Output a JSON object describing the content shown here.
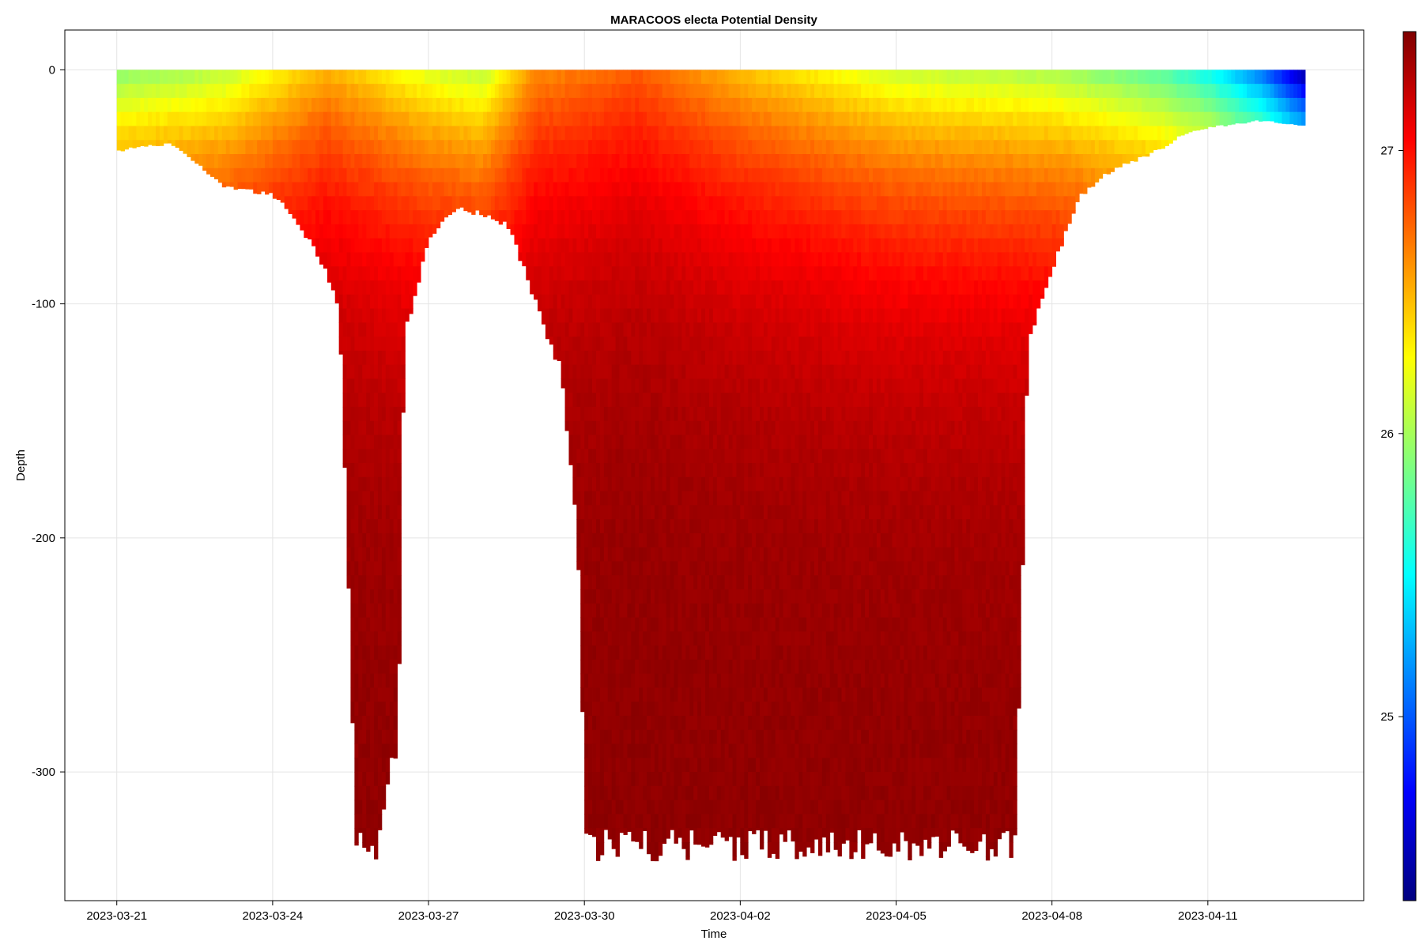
{
  "chart_data": {
    "type": "scatter",
    "title": "MARACOOS electa Potential Density",
    "xlabel": "Time",
    "ylabel": "Depth",
    "x_axis": {
      "type": "date",
      "range": [
        "2023-03-20",
        "2023-04-14"
      ],
      "ticks": [
        "2023-03-21",
        "2023-03-24",
        "2023-03-27",
        "2023-03-30",
        "2023-04-02",
        "2023-04-05",
        "2023-04-08",
        "2023-04-11"
      ]
    },
    "y_axis": {
      "range": [
        -355,
        17
      ],
      "ticks": [
        0,
        -100,
        -200,
        -300
      ],
      "tick_labels": [
        "0",
        "-100",
        "-200",
        "-300"
      ]
    },
    "colorbar": {
      "colormap": "jet",
      "range": [
        24.35,
        27.42
      ],
      "ticks": [
        25,
        26,
        27
      ],
      "tick_labels": [
        "25",
        "26",
        "27"
      ],
      "stops": [
        "#00007f",
        "#0000ff",
        "#007fff",
        "#00ffff",
        "#7fff7f",
        "#ffff00",
        "#ff7f00",
        "#ff0000",
        "#7f0000"
      ]
    },
    "grid": true,
    "data_start": "2023-03-21",
    "data_end": "2023-04-12T20:00",
    "profile_depth_envelope": [
      {
        "date": "2023-03-21",
        "max_depth": 35
      },
      {
        "date": "2023-03-22",
        "max_depth": 32
      },
      {
        "date": "2023-03-23",
        "max_depth": 50
      },
      {
        "date": "2023-03-24",
        "max_depth": 55
      },
      {
        "date": "2023-03-24T12:00",
        "max_depth": 68
      },
      {
        "date": "2023-03-25",
        "max_depth": 88
      },
      {
        "date": "2023-03-25T06:00",
        "max_depth": 105
      },
      {
        "date": "2023-03-25T14:00",
        "max_depth": 338
      },
      {
        "date": "2023-03-26",
        "max_depth": 338
      },
      {
        "date": "2023-03-26T09:00",
        "max_depth": 290
      },
      {
        "date": "2023-03-26T12:00",
        "max_depth": 115
      },
      {
        "date": "2023-03-27",
        "max_depth": 72
      },
      {
        "date": "2023-03-27T12:00",
        "max_depth": 60
      },
      {
        "date": "2023-03-28",
        "max_depth": 63
      },
      {
        "date": "2023-03-28T12:00",
        "max_depth": 68
      },
      {
        "date": "2023-03-29",
        "max_depth": 100
      },
      {
        "date": "2023-03-29T12:00",
        "max_depth": 130
      },
      {
        "date": "2023-03-29T20:00",
        "max_depth": 200
      },
      {
        "date": "2023-03-30",
        "max_depth": 338
      },
      {
        "date": "2023-03-31",
        "max_depth": 338
      },
      {
        "date": "2023-04-01",
        "max_depth": 338
      },
      {
        "date": "2023-04-02",
        "max_depth": 338
      },
      {
        "date": "2023-04-03",
        "max_depth": 338
      },
      {
        "date": "2023-04-04",
        "max_depth": 338
      },
      {
        "date": "2023-04-05",
        "max_depth": 338
      },
      {
        "date": "2023-04-06",
        "max_depth": 338
      },
      {
        "date": "2023-04-07",
        "max_depth": 338
      },
      {
        "date": "2023-04-07T06:00",
        "max_depth": 338
      },
      {
        "date": "2023-04-07T09:00",
        "max_depth": 240
      },
      {
        "date": "2023-04-07T12:00",
        "max_depth": 120
      },
      {
        "date": "2023-04-08",
        "max_depth": 85
      },
      {
        "date": "2023-04-08T12:00",
        "max_depth": 55
      },
      {
        "date": "2023-04-09",
        "max_depth": 45
      },
      {
        "date": "2023-04-10",
        "max_depth": 35
      },
      {
        "date": "2023-04-10T12:00",
        "max_depth": 28
      },
      {
        "date": "2023-04-11",
        "max_depth": 25
      },
      {
        "date": "2023-04-12",
        "max_depth": 22
      },
      {
        "date": "2023-04-12T20:00",
        "max_depth": 24
      }
    ],
    "surface_density_by_date": [
      {
        "date": "2023-03-21",
        "density": 25.9
      },
      {
        "date": "2023-03-23",
        "density": 26.05
      },
      {
        "date": "2023-03-25",
        "density": 26.5
      },
      {
        "date": "2023-03-27",
        "density": 26.15
      },
      {
        "date": "2023-03-28",
        "density": 26.05
      },
      {
        "date": "2023-03-29",
        "density": 26.6
      },
      {
        "date": "2023-03-31",
        "density": 26.75
      },
      {
        "date": "2023-04-02",
        "density": 26.45
      },
      {
        "date": "2023-04-05",
        "density": 26.1
      },
      {
        "date": "2023-04-08",
        "density": 26.0
      },
      {
        "date": "2023-04-10",
        "density": 25.75
      },
      {
        "date": "2023-04-11",
        "density": 25.5
      },
      {
        "date": "2023-04-12",
        "density": 25.05
      },
      {
        "date": "2023-04-12T20:00",
        "density": 24.4
      }
    ]
  }
}
